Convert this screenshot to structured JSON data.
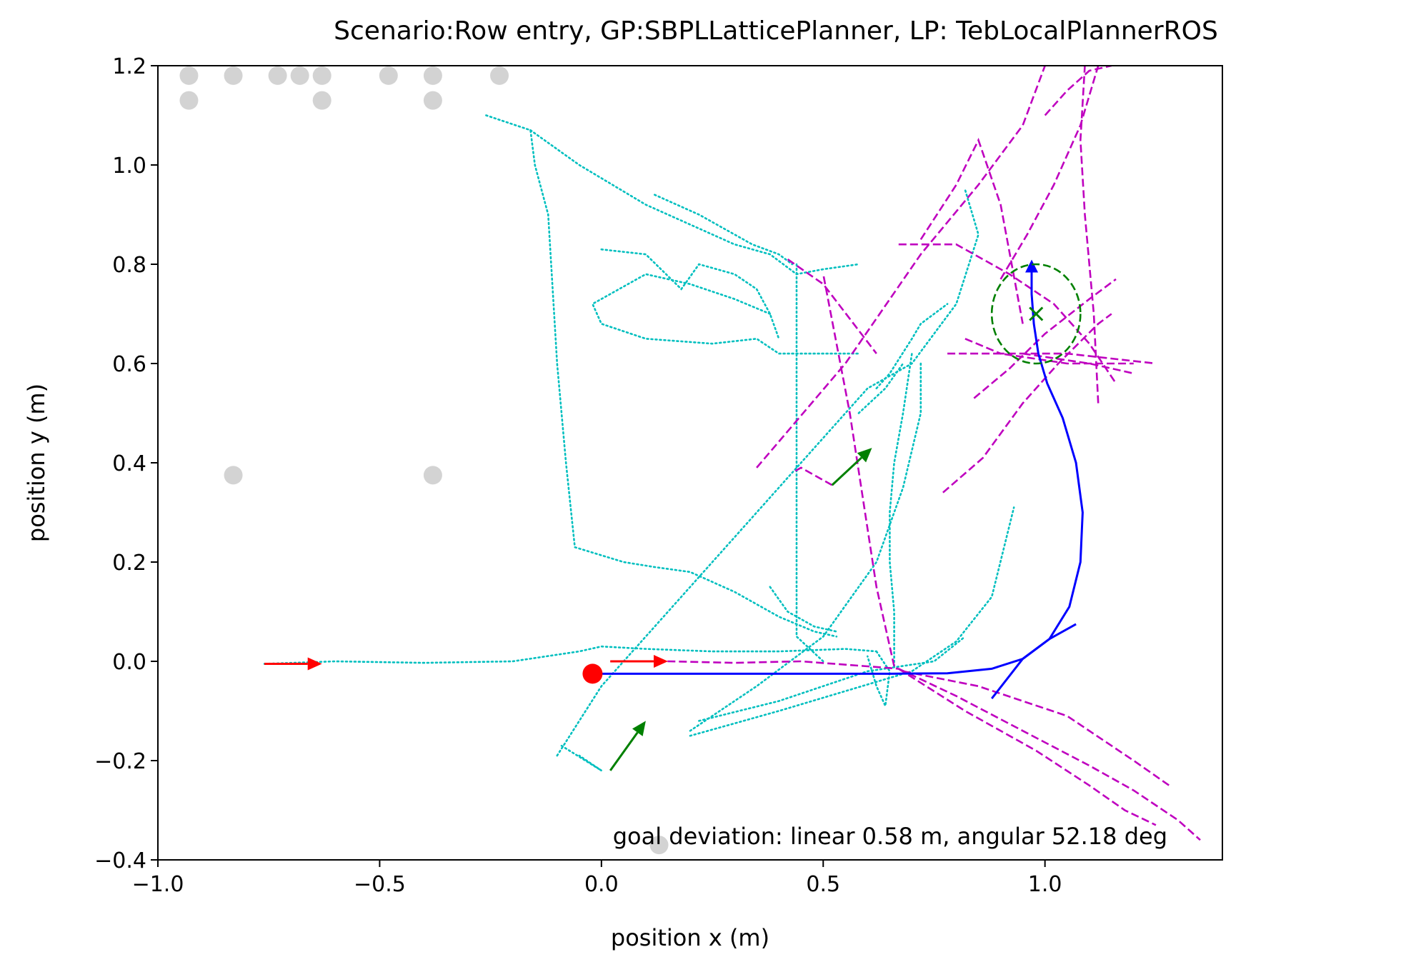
{
  "chart_data": {
    "type": "scatter",
    "title": "Scenario:Row entry, GP:SBPLLatticePlanner, LP: TebLocalPlannerROS",
    "xlabel": "position x (m)",
    "ylabel": "position y (m)",
    "xlim": [
      -1.0,
      1.4
    ],
    "ylim": [
      -0.4,
      1.2
    ],
    "xticks": [
      -1.0,
      -0.5,
      0.0,
      0.5,
      1.0
    ],
    "xtick_labels": [
      "−1.0",
      "−0.5",
      "0.0",
      "0.5",
      "1.0"
    ],
    "yticks": [
      -0.4,
      -0.2,
      0.0,
      0.2,
      0.4,
      0.6,
      0.8,
      1.0,
      1.2
    ],
    "ytick_labels": [
      "−0.4",
      "−0.2",
      "0.0",
      "0.2",
      "0.4",
      "0.6",
      "0.8",
      "1.0",
      "1.2"
    ],
    "grid": false,
    "annotation": "goal deviation: linear 0.58 m, angular 52.18 deg",
    "colors": {
      "obstacles": "#d3d3d3",
      "robot_path": "#0000ff",
      "local_plans": "#bf00bf",
      "global_plans": "#00bfbf",
      "start": "#ff0000",
      "goal": "#008000"
    },
    "obstacles": [
      [
        -0.93,
        1.18
      ],
      [
        -0.93,
        1.13
      ],
      [
        -0.83,
        1.18
      ],
      [
        -0.73,
        1.18
      ],
      [
        -0.68,
        1.18
      ],
      [
        -0.63,
        1.18
      ],
      [
        -0.63,
        1.13
      ],
      [
        -0.48,
        1.18
      ],
      [
        -0.38,
        1.18
      ],
      [
        -0.38,
        1.13
      ],
      [
        -0.23,
        1.18
      ],
      [
        -0.83,
        0.375
      ],
      [
        -0.38,
        0.375
      ],
      [
        0.13,
        -0.37
      ]
    ],
    "start_point": [
      -0.02,
      -0.025
    ],
    "goal_center": [
      0.98,
      0.7
    ],
    "goal_radius": 0.1,
    "arrows": [
      {
        "color": "#ff0000",
        "from": [
          -0.76,
          -0.005
        ],
        "to": [
          -0.63,
          -0.005
        ]
      },
      {
        "color": "#ff0000",
        "from": [
          0.02,
          0.0
        ],
        "to": [
          0.15,
          0.0
        ]
      },
      {
        "color": "#008000",
        "from": [
          0.02,
          -0.22
        ],
        "to": [
          0.1,
          -0.12
        ]
      },
      {
        "color": "#008000",
        "from": [
          0.52,
          0.355
        ],
        "to": [
          0.61,
          0.43
        ]
      }
    ],
    "robot_path": [
      [
        -0.02,
        -0.025
      ],
      [
        0.2,
        -0.025
      ],
      [
        0.45,
        -0.025
      ],
      [
        0.65,
        -0.025
      ],
      [
        0.78,
        -0.024
      ],
      [
        0.88,
        -0.015
      ],
      [
        0.95,
        0.005
      ],
      [
        1.01,
        0.045
      ],
      [
        1.055,
        0.11
      ],
      [
        1.08,
        0.2
      ],
      [
        1.085,
        0.3
      ],
      [
        1.07,
        0.4
      ],
      [
        1.04,
        0.49
      ],
      [
        1.005,
        0.56
      ],
      [
        0.985,
        0.62
      ],
      [
        0.975,
        0.68
      ],
      [
        0.97,
        0.74
      ],
      [
        0.97,
        0.795
      ]
    ],
    "robot_path_branch": [
      [
        1.07,
        0.075
      ],
      [
        1.01,
        0.045
      ],
      [
        0.95,
        0.005
      ],
      [
        0.88,
        -0.075
      ]
    ],
    "local_plans": [
      [
        [
          0.02,
          0.0
        ],
        [
          0.15,
          0.0
        ],
        [
          0.3,
          -0.003
        ],
        [
          0.45,
          0.0
        ],
        [
          0.6,
          -0.01
        ],
        [
          0.67,
          -0.015
        ]
      ],
      [
        [
          0.67,
          -0.015
        ],
        [
          0.8,
          -0.07
        ],
        [
          0.95,
          -0.14
        ],
        [
          1.1,
          -0.21
        ],
        [
          1.2,
          -0.26
        ],
        [
          1.3,
          -0.32
        ],
        [
          1.35,
          -0.36
        ]
      ],
      [
        [
          0.67,
          -0.015
        ],
        [
          0.82,
          -0.1
        ],
        [
          0.98,
          -0.18
        ],
        [
          1.1,
          -0.25
        ],
        [
          1.18,
          -0.3
        ],
        [
          1.25,
          -0.33
        ]
      ],
      [
        [
          0.68,
          -0.02
        ],
        [
          0.85,
          -0.05
        ],
        [
          1.05,
          -0.11
        ],
        [
          1.2,
          -0.2
        ],
        [
          1.28,
          -0.25
        ]
      ],
      [
        [
          0.66,
          -0.01
        ],
        [
          0.62,
          0.15
        ],
        [
          0.56,
          0.5
        ],
        [
          0.5,
          0.78
        ]
      ],
      [
        [
          0.52,
          0.355
        ],
        [
          0.45,
          0.39
        ],
        [
          0.43,
          0.38
        ]
      ],
      [
        [
          0.35,
          0.39
        ],
        [
          0.55,
          0.6
        ],
        [
          0.72,
          0.82
        ],
        [
          0.85,
          0.96
        ],
        [
          0.95,
          1.08
        ],
        [
          1.0,
          1.2
        ]
      ],
      [
        [
          0.42,
          0.81
        ],
        [
          0.5,
          0.76
        ],
        [
          0.62,
          0.62
        ]
      ],
      [
        [
          0.72,
          0.85
        ],
        [
          0.8,
          0.96
        ],
        [
          0.85,
          1.05
        ],
        [
          0.9,
          0.92
        ],
        [
          0.95,
          0.68
        ]
      ],
      [
        [
          0.67,
          0.84
        ],
        [
          0.8,
          0.84
        ],
        [
          0.92,
          0.78
        ],
        [
          1.02,
          0.72
        ],
        [
          1.1,
          0.64
        ],
        [
          1.16,
          0.56
        ]
      ],
      [
        [
          0.77,
          0.34
        ],
        [
          0.86,
          0.41
        ],
        [
          0.95,
          0.52
        ],
        [
          1.03,
          0.6
        ],
        [
          1.12,
          0.68
        ],
        [
          1.15,
          0.7
        ]
      ],
      [
        [
          0.78,
          0.62
        ],
        [
          0.9,
          0.62
        ],
        [
          1.05,
          0.6
        ],
        [
          1.2,
          0.6
        ]
      ],
      [
        [
          0.84,
          0.53
        ],
        [
          0.92,
          0.59
        ],
        [
          1.0,
          0.66
        ],
        [
          1.1,
          0.73
        ],
        [
          1.16,
          0.77
        ]
      ],
      [
        [
          0.95,
          0.62
        ],
        [
          1.1,
          0.6
        ],
        [
          1.2,
          0.58
        ]
      ],
      [
        [
          0.9,
          0.77
        ],
        [
          0.96,
          0.86
        ],
        [
          1.02,
          0.96
        ],
        [
          1.08,
          1.08
        ],
        [
          1.12,
          1.2
        ]
      ],
      [
        [
          1.12,
          0.52
        ],
        [
          1.11,
          0.7
        ],
        [
          1.09,
          0.9
        ],
        [
          1.08,
          1.05
        ],
        [
          1.09,
          1.2
        ]
      ],
      [
        [
          1.0,
          1.1
        ],
        [
          1.05,
          1.15
        ],
        [
          1.1,
          1.19
        ],
        [
          1.15,
          1.2
        ]
      ],
      [
        [
          0.82,
          0.65
        ],
        [
          0.9,
          0.62
        ],
        [
          1.05,
          0.62
        ],
        [
          1.25,
          0.6
        ]
      ]
    ],
    "global_plans": [
      [
        [
          -0.76,
          -0.005
        ],
        [
          -0.6,
          0.0
        ],
        [
          -0.4,
          -0.003
        ],
        [
          -0.2,
          0.0
        ],
        [
          -0.05,
          0.02
        ],
        [
          0.0,
          0.03
        ],
        [
          0.1,
          0.025
        ],
        [
          0.25,
          0.02
        ],
        [
          0.4,
          0.02
        ],
        [
          0.55,
          0.025
        ],
        [
          0.62,
          0.02
        ]
      ],
      [
        [
          -0.26,
          1.1
        ],
        [
          -0.16,
          1.07
        ],
        [
          -0.15,
          1.0
        ],
        [
          -0.12,
          0.9
        ],
        [
          -0.1,
          0.6
        ],
        [
          -0.08,
          0.4
        ],
        [
          -0.06,
          0.23
        ],
        [
          0.05,
          0.2
        ],
        [
          0.12,
          0.19
        ],
        [
          0.2,
          0.18
        ],
        [
          0.3,
          0.14
        ],
        [
          0.4,
          0.09
        ],
        [
          0.48,
          0.06
        ],
        [
          0.53,
          0.05
        ]
      ],
      [
        [
          -0.16,
          1.07
        ],
        [
          -0.05,
          1.0
        ],
        [
          0.1,
          0.92
        ],
        [
          0.2,
          0.88
        ],
        [
          0.3,
          0.84
        ],
        [
          0.38,
          0.82
        ],
        [
          0.44,
          0.78
        ],
        [
          0.5,
          0.79
        ],
        [
          0.58,
          0.8
        ]
      ],
      [
        [
          0.12,
          0.94
        ],
        [
          0.22,
          0.9
        ],
        [
          0.34,
          0.84
        ],
        [
          0.4,
          0.82
        ],
        [
          0.43,
          0.8
        ]
      ],
      [
        [
          0.0,
          0.83
        ],
        [
          0.1,
          0.82
        ],
        [
          0.18,
          0.75
        ],
        [
          0.22,
          0.8
        ],
        [
          0.3,
          0.78
        ],
        [
          0.35,
          0.75
        ],
        [
          0.38,
          0.7
        ],
        [
          0.4,
          0.65
        ]
      ],
      [
        [
          0.38,
          0.7
        ],
        [
          0.3,
          0.73
        ],
        [
          0.2,
          0.76
        ],
        [
          0.1,
          0.78
        ],
        [
          -0.02,
          0.72
        ],
        [
          0.0,
          0.68
        ],
        [
          0.1,
          0.65
        ],
        [
          0.25,
          0.64
        ],
        [
          0.35,
          0.65
        ],
        [
          0.4,
          0.62
        ],
        [
          0.5,
          0.62
        ],
        [
          0.58,
          0.62
        ]
      ],
      [
        [
          -0.1,
          -0.19
        ],
        [
          0.0,
          -0.05
        ],
        [
          0.15,
          0.1
        ],
        [
          0.3,
          0.25
        ],
        [
          0.45,
          0.4
        ],
        [
          0.6,
          0.55
        ],
        [
          0.7,
          0.6
        ],
        [
          0.8,
          0.72
        ],
        [
          0.85,
          0.86
        ],
        [
          0.82,
          0.95
        ]
      ],
      [
        [
          -0.09,
          -0.17
        ],
        [
          0.0,
          -0.22
        ],
        [
          -0.05,
          -0.19
        ]
      ],
      [
        [
          0.44,
          0.8
        ],
        [
          0.44,
          0.6
        ],
        [
          0.44,
          0.4
        ],
        [
          0.44,
          0.2
        ],
        [
          0.44,
          0.1
        ],
        [
          0.44,
          0.05
        ],
        [
          0.5,
          0.0
        ]
      ],
      [
        [
          0.38,
          0.15
        ],
        [
          0.42,
          0.1
        ],
        [
          0.48,
          0.07
        ],
        [
          0.53,
          0.06
        ]
      ],
      [
        [
          0.2,
          -0.14
        ],
        [
          0.35,
          -0.05
        ],
        [
          0.5,
          0.05
        ],
        [
          0.62,
          0.2
        ],
        [
          0.68,
          0.35
        ],
        [
          0.72,
          0.5
        ],
        [
          0.72,
          0.6
        ]
      ],
      [
        [
          0.2,
          -0.15
        ],
        [
          0.4,
          -0.1
        ],
        [
          0.55,
          -0.06
        ],
        [
          0.7,
          -0.02
        ],
        [
          0.8,
          0.04
        ],
        [
          0.88,
          0.13
        ],
        [
          0.93,
          0.31
        ]
      ],
      [
        [
          0.22,
          -0.12
        ],
        [
          0.4,
          -0.08
        ],
        [
          0.6,
          -0.02
        ],
        [
          0.75,
          0.0
        ],
        [
          0.82,
          0.05
        ]
      ],
      [
        [
          0.62,
          0.55
        ],
        [
          0.65,
          0.58
        ],
        [
          0.7,
          0.65
        ],
        [
          0.72,
          0.68
        ],
        [
          0.78,
          0.72
        ]
      ],
      [
        [
          0.66,
          -0.01
        ],
        [
          0.66,
          0.1
        ],
        [
          0.65,
          0.2
        ],
        [
          0.65,
          0.3
        ],
        [
          0.66,
          0.4
        ],
        [
          0.68,
          0.5
        ],
        [
          0.7,
          0.62
        ]
      ],
      [
        [
          0.58,
          0.5
        ],
        [
          0.64,
          0.55
        ],
        [
          0.68,
          0.6
        ]
      ],
      [
        [
          0.62,
          0.02
        ],
        [
          0.65,
          -0.02
        ],
        [
          0.64,
          -0.09
        ],
        [
          0.62,
          -0.05
        ],
        [
          0.6,
          0.01
        ]
      ]
    ]
  }
}
